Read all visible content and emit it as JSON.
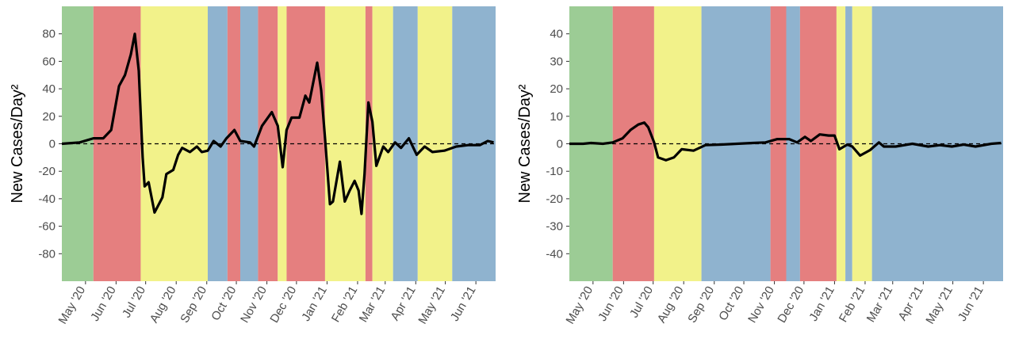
{
  "chart_data": [
    {
      "type": "line",
      "y_label": "New Cases/Day²",
      "xlim": [
        "2020-04-07",
        "2021-06-21"
      ],
      "ylim": [
        -100,
        100
      ],
      "yticks": [
        -80,
        -60,
        -40,
        -20,
        0,
        20,
        40,
        60,
        80
      ],
      "xticks": [
        {
          "value": "2020-05-01",
          "label": "May '20"
        },
        {
          "value": "2020-06-01",
          "label": "Jun '20"
        },
        {
          "value": "2020-07-01",
          "label": "Jul '20"
        },
        {
          "value": "2020-08-01",
          "label": "Aug '20"
        },
        {
          "value": "2020-09-01",
          "label": "Sep '20"
        },
        {
          "value": "2020-10-01",
          "label": "Oct '20"
        },
        {
          "value": "2020-11-01",
          "label": "Nov '20"
        },
        {
          "value": "2020-12-01",
          "label": "Dec '20"
        },
        {
          "value": "2021-01-01",
          "label": "Jan '21"
        },
        {
          "value": "2021-02-01",
          "label": "Feb '21"
        },
        {
          "value": "2021-03-01",
          "label": "Mar '21"
        },
        {
          "value": "2021-04-01",
          "label": "Apr '21"
        },
        {
          "value": "2021-05-01",
          "label": "May '21"
        },
        {
          "value": "2021-06-01",
          "label": "Jun '21"
        }
      ],
      "reference_line": 0,
      "phases": [
        {
          "start": "2020-04-07",
          "end": "2020-05-09",
          "color": "#9ccc95"
        },
        {
          "start": "2020-05-09",
          "end": "2020-06-26",
          "color": "#e57f7f"
        },
        {
          "start": "2020-06-26",
          "end": "2020-09-02",
          "color": "#f2f28a"
        },
        {
          "start": "2020-09-02",
          "end": "2020-09-22",
          "color": "#8fb3cf"
        },
        {
          "start": "2020-09-22",
          "end": "2020-10-05",
          "color": "#e57f7f"
        },
        {
          "start": "2020-10-05",
          "end": "2020-10-23",
          "color": "#8fb3cf"
        },
        {
          "start": "2020-10-23",
          "end": "2020-11-12",
          "color": "#e57f7f"
        },
        {
          "start": "2020-11-12",
          "end": "2020-11-21",
          "color": "#f2f28a"
        },
        {
          "start": "2020-11-21",
          "end": "2020-12-30",
          "color": "#e57f7f"
        },
        {
          "start": "2020-12-30",
          "end": "2021-02-09",
          "color": "#f2f28a"
        },
        {
          "start": "2021-02-09",
          "end": "2021-02-16",
          "color": "#e57f7f"
        },
        {
          "start": "2021-02-16",
          "end": "2021-03-09",
          "color": "#f2f28a"
        },
        {
          "start": "2021-03-09",
          "end": "2021-04-03",
          "color": "#8fb3cf"
        },
        {
          "start": "2021-04-03",
          "end": "2021-05-08",
          "color": "#f2f28a"
        },
        {
          "start": "2021-05-08",
          "end": "2021-06-21",
          "color": "#8fb3cf"
        }
      ],
      "series": [
        {
          "color": "#000000",
          "x": [
            "2020-04-07",
            "2020-04-25",
            "2020-05-09",
            "2020-05-19",
            "2020-05-27",
            "2020-06-04",
            "2020-06-10",
            "2020-06-16",
            "2020-06-20",
            "2020-06-24",
            "2020-06-28",
            "2020-06-30",
            "2020-07-04",
            "2020-07-10",
            "2020-07-18",
            "2020-07-22",
            "2020-07-29",
            "2020-08-03",
            "2020-08-07",
            "2020-08-15",
            "2020-08-22",
            "2020-08-27",
            "2020-09-02",
            "2020-09-08",
            "2020-09-15",
            "2020-09-21",
            "2020-09-29",
            "2020-10-05",
            "2020-10-15",
            "2020-10-19",
            "2020-10-27",
            "2020-11-06",
            "2020-11-12",
            "2020-11-17",
            "2020-11-21",
            "2020-11-26",
            "2020-12-04",
            "2020-12-10",
            "2020-12-14",
            "2020-12-22",
            "2020-12-26",
            "2020-12-30",
            "2021-01-04",
            "2021-01-07",
            "2021-01-14",
            "2021-01-19",
            "2021-01-24",
            "2021-01-29",
            "2021-02-02",
            "2021-02-05",
            "2021-02-08",
            "2021-02-12",
            "2021-02-16",
            "2021-02-20",
            "2021-02-27",
            "2021-03-04",
            "2021-03-11",
            "2021-03-17",
            "2021-03-25",
            "2021-04-02",
            "2021-04-10",
            "2021-04-18",
            "2021-04-30",
            "2021-05-12",
            "2021-05-24",
            "2021-06-05",
            "2021-06-13",
            "2021-06-19"
          ],
          "values": [
            0,
            1,
            4,
            4,
            10,
            42,
            50,
            65,
            80,
            53,
            -10,
            -31,
            -28,
            -50,
            -39,
            -22,
            -19,
            -8,
            -3,
            -6,
            -2,
            -6,
            -5,
            2,
            -2,
            4,
            10,
            2,
            1,
            -2,
            13,
            23,
            13,
            -17,
            10,
            19,
            19,
            35,
            30,
            59,
            39,
            4,
            -44,
            -42,
            -13,
            -42,
            -34,
            -27,
            -34,
            -51,
            -22,
            30,
            16,
            -16,
            -2,
            -6,
            1,
            -3,
            4,
            -8,
            -2,
            -6,
            -5,
            -2,
            -1,
            -1,
            2,
            1
          ]
        }
      ]
    },
    {
      "type": "line",
      "y_label": "New Cases/Day²",
      "xlim": [
        "2020-04-07",
        "2021-06-21"
      ],
      "ylim": [
        -50,
        50
      ],
      "yticks": [
        -40,
        -30,
        -20,
        -10,
        0,
        10,
        20,
        30,
        40
      ],
      "xticks": [
        {
          "value": "2020-05-01",
          "label": "May '20"
        },
        {
          "value": "2020-06-01",
          "label": "Jun '20"
        },
        {
          "value": "2020-07-01",
          "label": "Jul '20"
        },
        {
          "value": "2020-08-01",
          "label": "Aug '20"
        },
        {
          "value": "2020-09-01",
          "label": "Sep '20"
        },
        {
          "value": "2020-10-01",
          "label": "Oct '20"
        },
        {
          "value": "2020-11-01",
          "label": "Nov '20"
        },
        {
          "value": "2020-12-01",
          "label": "Dec '20"
        },
        {
          "value": "2021-01-01",
          "label": "Jan '21"
        },
        {
          "value": "2021-02-01",
          "label": "Feb '21"
        },
        {
          "value": "2021-03-01",
          "label": "Mar '21"
        },
        {
          "value": "2021-04-01",
          "label": "Apr '21"
        },
        {
          "value": "2021-05-01",
          "label": "May '21"
        },
        {
          "value": "2021-06-01",
          "label": "Jun '21"
        }
      ],
      "reference_line": 0,
      "phases": [
        {
          "start": "2020-04-07",
          "end": "2020-05-21",
          "color": "#9ccc95"
        },
        {
          "start": "2020-05-21",
          "end": "2020-07-02",
          "color": "#e57f7f"
        },
        {
          "start": "2020-07-02",
          "end": "2020-08-19",
          "color": "#f2f28a"
        },
        {
          "start": "2020-08-19",
          "end": "2020-10-28",
          "color": "#8fb3cf"
        },
        {
          "start": "2020-10-28",
          "end": "2020-11-13",
          "color": "#e57f7f"
        },
        {
          "start": "2020-11-13",
          "end": "2020-11-27",
          "color": "#8fb3cf"
        },
        {
          "start": "2020-11-27",
          "end": "2021-01-03",
          "color": "#e57f7f"
        },
        {
          "start": "2021-01-03",
          "end": "2021-01-12",
          "color": "#f2f28a"
        },
        {
          "start": "2021-01-12",
          "end": "2021-01-19",
          "color": "#8fb3cf"
        },
        {
          "start": "2021-01-19",
          "end": "2021-02-08",
          "color": "#f2f28a"
        },
        {
          "start": "2021-02-08",
          "end": "2021-06-21",
          "color": "#8fb3cf"
        }
      ],
      "series": [
        {
          "color": "#000000",
          "x": [
            "2020-04-07",
            "2020-04-21",
            "2020-04-29",
            "2020-05-11",
            "2020-05-21",
            "2020-05-31",
            "2020-06-08",
            "2020-06-16",
            "2020-06-22",
            "2020-06-26",
            "2020-07-02",
            "2020-07-06",
            "2020-07-14",
            "2020-07-22",
            "2020-07-30",
            "2020-08-11",
            "2020-08-23",
            "2020-09-08",
            "2020-09-24",
            "2020-10-10",
            "2020-10-23",
            "2020-11-04",
            "2020-11-16",
            "2020-11-24",
            "2020-12-02",
            "2020-12-08",
            "2020-12-17",
            "2020-12-26",
            "2021-01-01",
            "2021-01-06",
            "2021-01-14",
            "2021-01-19",
            "2021-01-27",
            "2021-02-06",
            "2021-02-15",
            "2021-02-20",
            "2021-03-04",
            "2021-03-21",
            "2021-04-06",
            "2021-04-18",
            "2021-04-30",
            "2021-05-12",
            "2021-05-24",
            "2021-06-09",
            "2021-06-19"
          ],
          "values": [
            0,
            0,
            0.3,
            0,
            0.5,
            2,
            5,
            7,
            7.7,
            6,
            0.5,
            -5,
            -6,
            -5,
            -2,
            -2.5,
            -0.5,
            -0.3,
            0,
            0.3,
            0.5,
            1.7,
            1.7,
            0.5,
            2.5,
            1,
            3.4,
            3,
            3,
            -2,
            -0.3,
            -1,
            -4.3,
            -2.3,
            0.5,
            -1,
            -1,
            0,
            -1,
            -0.5,
            -1,
            -0.3,
            -1,
            0,
            0.3
          ]
        }
      ]
    }
  ]
}
